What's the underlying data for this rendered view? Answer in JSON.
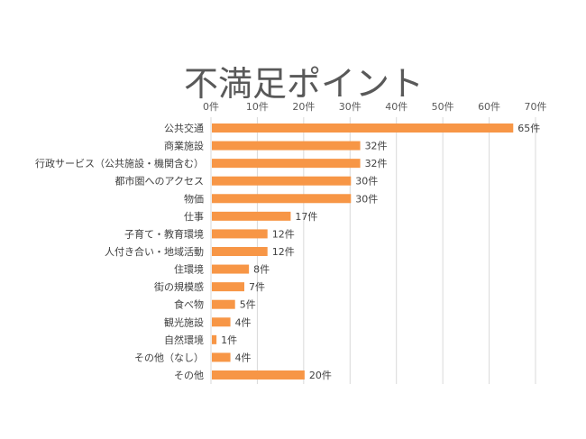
{
  "chart_data": {
    "type": "bar",
    "orientation": "horizontal",
    "title": "不満足ポイント",
    "categories": [
      "公共交通",
      "商業施設",
      "行政サービス（公共施設・機関含む）",
      "都市圏へのアクセス",
      "物価",
      "仕事",
      "子育て・教育環境",
      "人付き合い・地域活動",
      "住環境",
      "街の規模感",
      "食べ物",
      "観光施設",
      "自然環境",
      "その他（なし）",
      "その他"
    ],
    "values": [
      65,
      32,
      32,
      30,
      30,
      17,
      12,
      12,
      8,
      7,
      5,
      4,
      1,
      4,
      20
    ],
    "data_labels": [
      "65件",
      "32件",
      "32件",
      "30件",
      "30件",
      "17件",
      "12件",
      "12件",
      "8件",
      "7件",
      "5件",
      "4件",
      "1件",
      "4件",
      "20件"
    ],
    "xticks": [
      "0件",
      "10件",
      "20件",
      "30件",
      "40件",
      "50件",
      "60件",
      "70件"
    ],
    "xlim": [
      0,
      70
    ],
    "xaxis_position": "top",
    "grid": true,
    "legend": "none",
    "colors": {
      "bar": "#F79646",
      "grid": "#D9D9D9",
      "title": "#595959",
      "text": "#404040"
    }
  }
}
